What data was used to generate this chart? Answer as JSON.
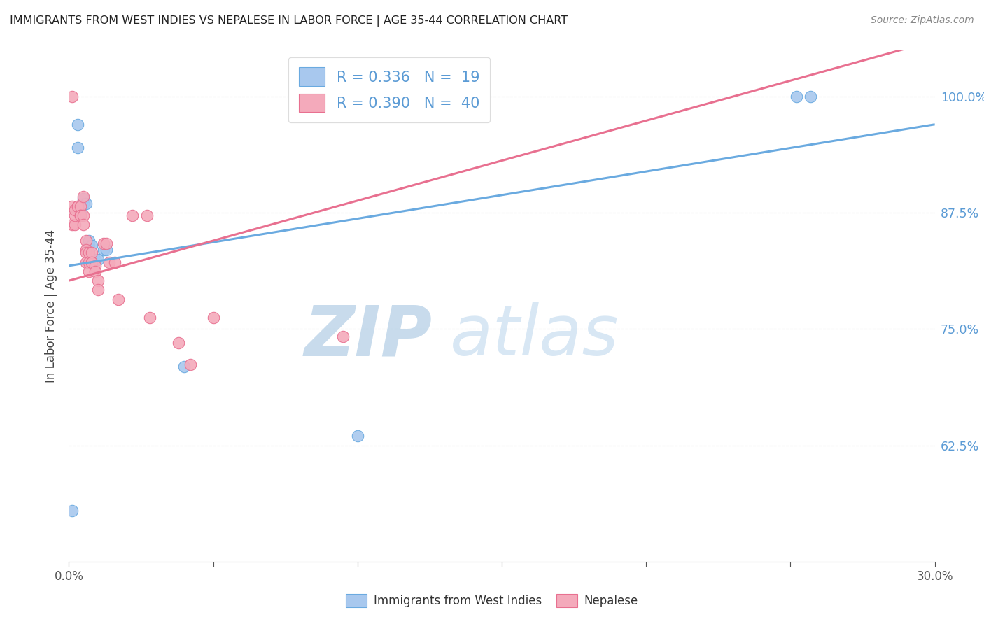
{
  "title": "IMMIGRANTS FROM WEST INDIES VS NEPALESE IN LABOR FORCE | AGE 35-44 CORRELATION CHART",
  "source": "Source: ZipAtlas.com",
  "ylabel": "In Labor Force | Age 35-44",
  "ytick_labels": [
    "100.0%",
    "87.5%",
    "75.0%",
    "62.5%"
  ],
  "ytick_values": [
    1.0,
    0.875,
    0.75,
    0.625
  ],
  "xlim": [
    0.0,
    0.3
  ],
  "ylim": [
    0.5,
    1.05
  ],
  "blue_color": "#A8C8EE",
  "pink_color": "#F4AABB",
  "blue_edge_color": "#6AAAE0",
  "pink_edge_color": "#E87090",
  "blue_line_color": "#6AAAE0",
  "pink_line_color": "#E87090",
  "legend_R_blue": "0.336",
  "legend_N_blue": "19",
  "legend_R_pink": "0.390",
  "legend_N_pink": "40",
  "watermark_zip": "ZIP",
  "watermark_atlas": "atlas",
  "blue_scatter_x": [
    0.001,
    0.003,
    0.003,
    0.004,
    0.004,
    0.005,
    0.005,
    0.006,
    0.007,
    0.007,
    0.008,
    0.009,
    0.01,
    0.012,
    0.013,
    0.04,
    0.1,
    0.252,
    0.257
  ],
  "blue_scatter_y": [
    0.555,
    0.97,
    0.945,
    0.875,
    0.88,
    0.885,
    0.89,
    0.885,
    0.84,
    0.845,
    0.84,
    0.825,
    0.825,
    0.835,
    0.835,
    0.71,
    0.635,
    1.0,
    1.0
  ],
  "pink_scatter_x": [
    0.001,
    0.001,
    0.001,
    0.002,
    0.002,
    0.002,
    0.003,
    0.003,
    0.004,
    0.004,
    0.004,
    0.005,
    0.005,
    0.005,
    0.006,
    0.006,
    0.006,
    0.006,
    0.007,
    0.007,
    0.007,
    0.008,
    0.008,
    0.008,
    0.009,
    0.009,
    0.01,
    0.01,
    0.012,
    0.013,
    0.014,
    0.016,
    0.017,
    0.022,
    0.027,
    0.028,
    0.038,
    0.042,
    0.05,
    0.095
  ],
  "pink_scatter_y": [
    1.0,
    0.882,
    0.862,
    0.862,
    0.872,
    0.878,
    0.882,
    0.882,
    0.882,
    0.872,
    0.872,
    0.892,
    0.872,
    0.862,
    0.845,
    0.835,
    0.832,
    0.822,
    0.832,
    0.822,
    0.812,
    0.822,
    0.832,
    0.822,
    0.818,
    0.812,
    0.802,
    0.792,
    0.842,
    0.842,
    0.822,
    0.822,
    0.782,
    0.872,
    0.872,
    0.762,
    0.735,
    0.712,
    0.762,
    0.742
  ],
  "blue_line_x": [
    0.0,
    0.3
  ],
  "blue_line_y": [
    0.818,
    0.97
  ],
  "pink_line_x": [
    0.0,
    0.3
  ],
  "pink_line_y": [
    0.802,
    1.06
  ],
  "xtick_positions": [
    0.0,
    0.05,
    0.1,
    0.15,
    0.2,
    0.25,
    0.3
  ],
  "right_axis_color": "#5B9BD5",
  "grid_color": "#CCCCCC"
}
